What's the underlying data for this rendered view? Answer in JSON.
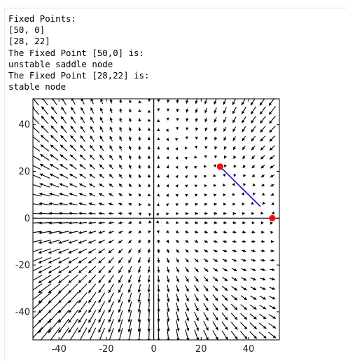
{
  "output": {
    "lines": [
      "Fixed Points:",
      "[50, 0]",
      "[28, 22]",
      "The Fixed Point [50,0] is:",
      "unstable saddle node",
      "The Fixed Point [28,22] is:",
      "stable node"
    ]
  },
  "chart_data": {
    "type": "scatter",
    "subtype": "phase-portrait-vector-field",
    "xlim": [
      -51,
      53
    ],
    "ylim": [
      -52,
      51
    ],
    "x_ticks": [
      -40,
      -20,
      0,
      20,
      40
    ],
    "y_ticks": [
      -40,
      -20,
      0,
      20,
      40
    ],
    "x_tick_labels": [
      "-40",
      "-20",
      "0",
      "20",
      "40"
    ],
    "y_tick_labels": [
      "-40",
      "-20",
      "0",
      "20",
      "40"
    ],
    "axes_lines": {
      "x": 0,
      "y": 0
    },
    "grid_step": 4,
    "vector_field": {
      "dx": "x*(50 - x - y)",
      "dy": "y*(50 - x - y) + x*y - 1.28*x*y - 0.06*y*y"
    },
    "fixed_points": [
      {
        "x": 50,
        "y": 0,
        "color": "#ee1111"
      },
      {
        "x": 28,
        "y": 22,
        "color": "#ee1111"
      }
    ],
    "trajectory": {
      "color": "#1111cc",
      "points": [
        [
          28,
          22
        ],
        [
          45,
          5
        ]
      ]
    },
    "arrow_color": "#000000",
    "background": "#ffffff"
  }
}
